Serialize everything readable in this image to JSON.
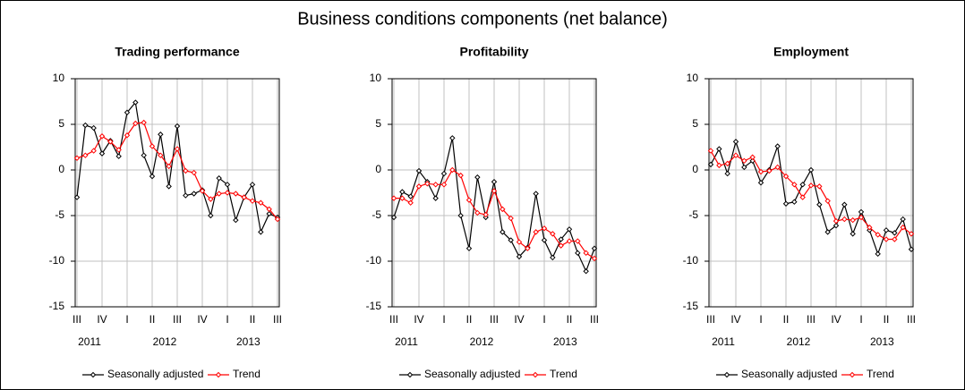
{
  "title": "Business conditions components (net balance)",
  "chart_data": [
    {
      "type": "line",
      "title": "Trading performance",
      "categories": [
        "III",
        null,
        null,
        "IV",
        null,
        null,
        "I",
        null,
        null,
        "II",
        null,
        null,
        "III",
        null,
        null,
        "IV",
        null,
        null,
        "I",
        null,
        null,
        "II",
        null,
        null,
        "III"
      ],
      "year_categories": [
        null,
        "2011",
        null,
        null,
        null,
        null,
        null,
        null,
        null,
        null,
        "2012",
        null,
        null,
        null,
        null,
        null,
        null,
        null,
        null,
        null,
        "2013",
        null,
        null,
        null,
        null
      ],
      "ylim": [
        -15,
        10
      ],
      "yticks": [
        -15,
        -10,
        -5,
        0,
        5,
        10
      ],
      "grid": true,
      "series": [
        {
          "name": "Seasonally adjusted",
          "color": "#000000",
          "values": [
            -3,
            4.9,
            4.6,
            1.8,
            3.2,
            1.5,
            6.3,
            7.4,
            1.6,
            -0.7,
            3.9,
            -1.8,
            4.8,
            -2.8,
            -2.6,
            -2.2,
            -5,
            -0.9,
            -1.6,
            -5.5,
            -3,
            -1.6,
            -6.8,
            -4.8,
            -5.2
          ]
        },
        {
          "name": "Trend",
          "color": "#ff0000",
          "values": [
            1.3,
            1.6,
            2.1,
            3.7,
            3.1,
            2.2,
            3.8,
            5.1,
            5.2,
            2.6,
            1.6,
            0.4,
            2.3,
            -0.1,
            -0.3,
            -2.3,
            -3.2,
            -2.6,
            -2.5,
            -2.6,
            -3,
            -3.4,
            -3.6,
            -4.3,
            -5.4
          ]
        }
      ]
    },
    {
      "type": "line",
      "title": "Profitability",
      "categories": [
        "III",
        null,
        null,
        "IV",
        null,
        null,
        "I",
        null,
        null,
        "II",
        null,
        null,
        "III",
        null,
        null,
        "IV",
        null,
        null,
        "I",
        null,
        null,
        "II",
        null,
        null,
        "III"
      ],
      "year_categories": [
        null,
        "2011",
        null,
        null,
        null,
        null,
        null,
        null,
        null,
        null,
        "2012",
        null,
        null,
        null,
        null,
        null,
        null,
        null,
        null,
        null,
        "2013",
        null,
        null,
        null,
        null
      ],
      "ylim": [
        -15,
        10
      ],
      "yticks": [
        -15,
        -10,
        -5,
        0,
        5,
        10
      ],
      "grid": true,
      "series": [
        {
          "name": "Seasonally adjusted",
          "color": "#000000",
          "values": [
            -5.2,
            -2.4,
            -2.9,
            -0.1,
            -1.3,
            -3.1,
            -0.4,
            3.5,
            -5,
            -8.6,
            -0.8,
            -5.2,
            -1.3,
            -6.8,
            -7.7,
            -9.5,
            -8.5,
            -2.6,
            -7.7,
            -9.6,
            -7.6,
            -6.5,
            -9.1,
            -11.1,
            -8.6
          ]
        },
        {
          "name": "Trend",
          "color": "#ff0000",
          "values": [
            -3.1,
            -3.1,
            -3.6,
            -1.8,
            -1.5,
            -1.6,
            -1.6,
            0,
            -0.6,
            -3.3,
            -4.7,
            -4.9,
            -2.3,
            -4.3,
            -5.3,
            -7.9,
            -8.6,
            -6.8,
            -6.4,
            -7,
            -8.3,
            -7.8,
            -7.8,
            -9.1,
            -9.7
          ]
        }
      ]
    },
    {
      "type": "line",
      "title": "Employment",
      "categories": [
        "III",
        null,
        null,
        "IV",
        null,
        null,
        "I",
        null,
        null,
        "II",
        null,
        null,
        "III",
        null,
        null,
        "IV",
        null,
        null,
        "I",
        null,
        null,
        "II",
        null,
        null,
        "III"
      ],
      "year_categories": [
        null,
        "2011",
        null,
        null,
        null,
        null,
        null,
        null,
        null,
        null,
        "2012",
        null,
        null,
        null,
        null,
        null,
        null,
        null,
        null,
        null,
        "2013",
        null,
        null,
        null,
        null
      ],
      "ylim": [
        -15,
        10
      ],
      "yticks": [
        -15,
        -10,
        -5,
        0,
        5,
        10
      ],
      "grid": true,
      "series": [
        {
          "name": "Seasonally adjusted",
          "color": "#000000",
          "values": [
            0.6,
            2.3,
            -0.4,
            3.1,
            0.3,
            1,
            -1.4,
            0,
            2.6,
            -3.7,
            -3.5,
            -1.6,
            0,
            -3.8,
            -6.8,
            -6.1,
            -3.8,
            -7,
            -4.6,
            -6.6,
            -9.2,
            -6.6,
            -6.9,
            -5.4,
            -8.7
          ]
        },
        {
          "name": "Trend",
          "color": "#ff0000",
          "values": [
            2.1,
            0.5,
            0.7,
            1.6,
            1,
            1.4,
            -0.2,
            -0.1,
            0.3,
            -0.7,
            -1.6,
            -3,
            -1.7,
            -1.8,
            -3.4,
            -5.6,
            -5.4,
            -5.5,
            -5.2,
            -6.3,
            -7.1,
            -7.6,
            -7.6,
            -6.3,
            -7
          ]
        }
      ]
    }
  ]
}
